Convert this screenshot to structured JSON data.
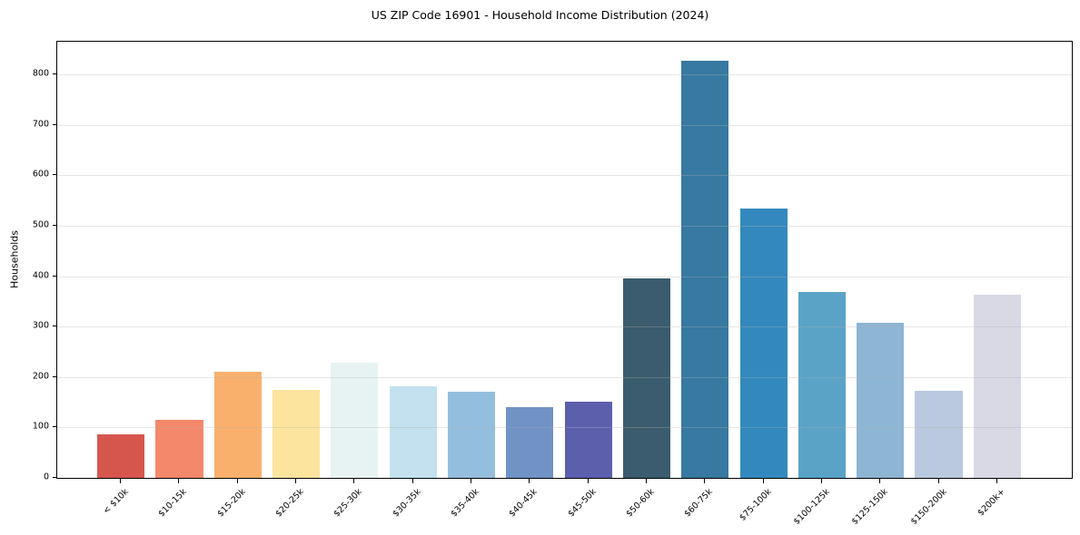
{
  "title": "US ZIP Code 16901 - Household Income Distribution (2024)",
  "chart_data": {
    "type": "bar",
    "title": "US ZIP Code 16901 - Household Income Distribution (2024)",
    "xlabel": "",
    "ylabel": "Households",
    "categories": [
      "< $10k",
      "$10-15k",
      "$15-20k",
      "$20-25k",
      "$25-30k",
      "$30-35k",
      "$35-40k",
      "$40-45k",
      "$45-50k",
      "$50-60k",
      "$60-75k",
      "$75-100k",
      "$100-125k",
      "$125-150k",
      "$150-200k",
      "$200k+"
    ],
    "values": [
      87,
      116,
      211,
      175,
      228,
      182,
      170,
      141,
      151,
      396,
      827,
      535,
      368,
      308,
      173,
      364
    ],
    "bar_colors": [
      "#d6564e",
      "#f4886a",
      "#f9b06c",
      "#fce49e",
      "#e6f3f2",
      "#c3e1ee",
      "#94bedd",
      "#7092c5",
      "#5c5fac",
      "#3a5c6e",
      "#3779a0",
      "#3389bd",
      "#5aa3c6",
      "#8db5d4",
      "#bac9df",
      "#d8d9e5"
    ],
    "ylim": [
      0,
      865
    ],
    "yticks": [
      0,
      100,
      200,
      300,
      400,
      500,
      600,
      700,
      800
    ],
    "grid": "horizontal",
    "gridline_color": "#e7e7e7",
    "axis_color": "#000000",
    "background": "#ffffff",
    "xtick_rotation": 45,
    "legend": "none"
  }
}
